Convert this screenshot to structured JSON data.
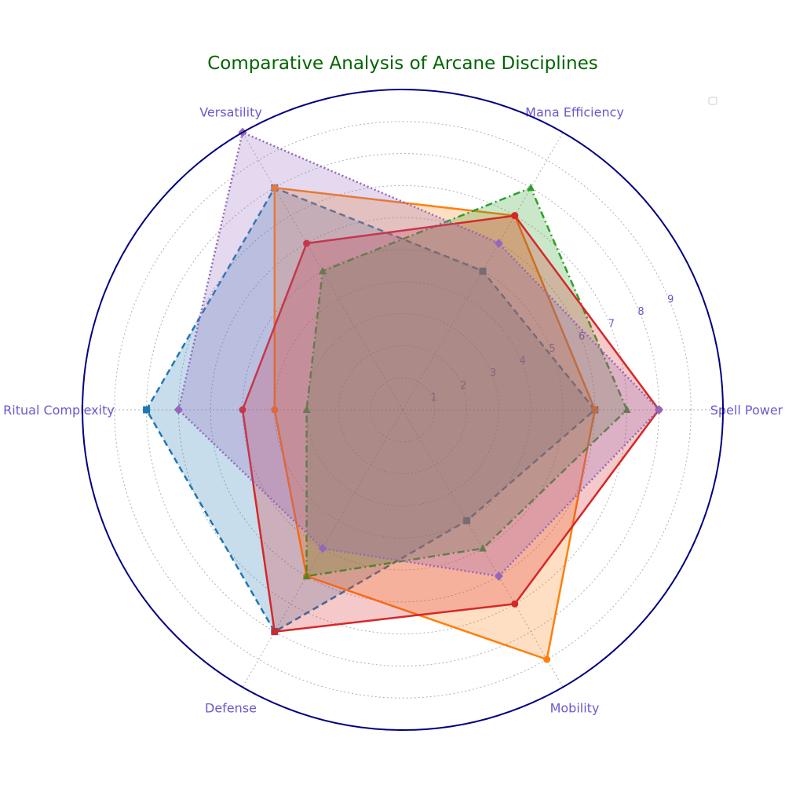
{
  "chart_data": {
    "type": "radar",
    "title": "Comparative Analysis of Arcane Disciplines",
    "axes": [
      "Spell Power",
      "Mana Efficiency",
      "Versatility",
      "Ritual Complexity",
      "Defense",
      "Mobility"
    ],
    "r_ticks": [
      "1",
      "2",
      "3",
      "4",
      "5",
      "6",
      "7",
      "8",
      "9"
    ],
    "rlim": [
      0,
      10
    ],
    "grid": true,
    "legend": {
      "placement": "top-right",
      "entries": []
    },
    "series": [
      {
        "values": [
          6,
          5,
          8,
          8,
          8,
          4
        ],
        "color": "#1f77b4",
        "style": "dashed",
        "marker": "square"
      },
      {
        "values": [
          6,
          7,
          8,
          4,
          6,
          9
        ],
        "color": "#ff7f0e",
        "style": "solid",
        "marker": "circle"
      },
      {
        "values": [
          7,
          8,
          5,
          3,
          6,
          5
        ],
        "color": "#2ca02c",
        "style": "dashdot",
        "marker": "triangle"
      },
      {
        "values": [
          8,
          7,
          6,
          5,
          8,
          7
        ],
        "color": "#d62728",
        "style": "solid",
        "marker": "circle"
      },
      {
        "values": [
          8,
          6,
          10,
          7,
          5,
          6
        ],
        "color": "#9467bd",
        "style": "dotted",
        "marker": "diamond"
      }
    ]
  }
}
